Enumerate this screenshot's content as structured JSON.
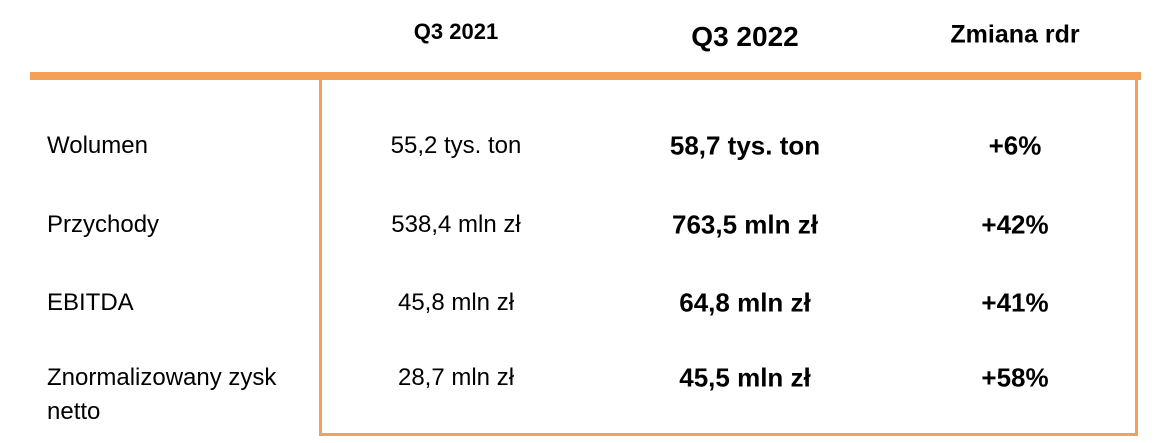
{
  "header": {
    "columns": [
      "Q3 2021",
      "Q3 2022",
      "Zmiana rdr"
    ]
  },
  "table": {
    "rows": [
      [
        "Wolumen",
        "55,2 tys. ton",
        "58,7 tys. ton",
        "+6%"
      ],
      [
        "Przychody",
        "538,4 mln zł",
        "763,5 mln zł",
        "+42%"
      ],
      [
        "EBITDA",
        "45,8 mln zł",
        "64,8 mln zł",
        "+41%"
      ],
      [
        "Znormalizowany zysk netto",
        "28,7 mln zł",
        "45,5 mln zł",
        "+58%"
      ]
    ]
  }
}
